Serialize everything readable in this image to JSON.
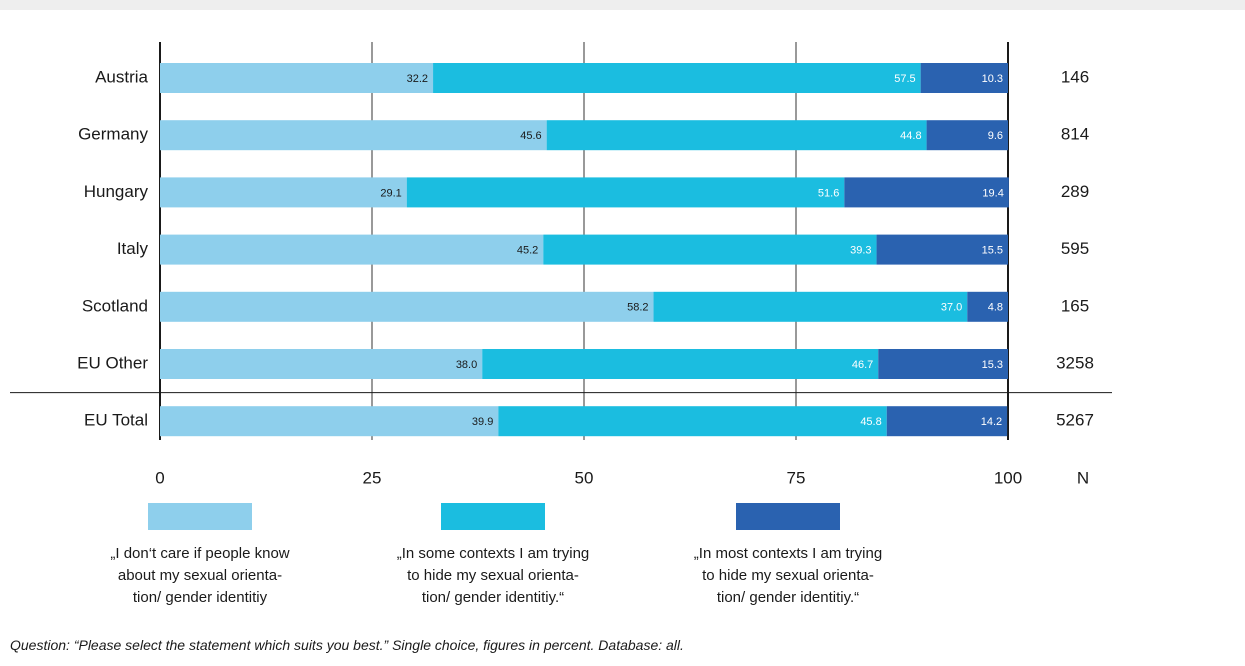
{
  "chart_data": {
    "type": "stacked-bar-horizontal",
    "categories": [
      "Austria",
      "Germany",
      "Hungary",
      "Italy",
      "Scotland",
      "EU Other",
      "EU Total"
    ],
    "series": [
      {
        "name": "„I don‘t care if people know\nabout my sexual orienta-\ntion/ gender identitiy",
        "color": "#8ecfec",
        "values": [
          32.2,
          45.6,
          29.1,
          45.2,
          58.2,
          38.0,
          39.9
        ],
        "value_labels": [
          "32.2",
          "45.6",
          "29.1",
          "45.2",
          "58.2",
          "38.0",
          "39.9"
        ]
      },
      {
        "name": "„In some contexts I am trying\nto hide my sexual orienta-\ntion/ gender identitiy.“",
        "color": "#1bbde0",
        "values": [
          57.5,
          44.8,
          51.6,
          39.3,
          37.0,
          46.7,
          45.8
        ],
        "value_labels": [
          "57.5",
          "44.8",
          "51.6",
          "39.3",
          "37.0",
          "46.7",
          "45.8"
        ]
      },
      {
        "name": "„In most contexts I am trying\n to hide my sexual orienta-\ntion/ gender identitiy.“",
        "color": "#2a62b0",
        "values": [
          10.3,
          9.6,
          19.4,
          15.5,
          4.8,
          15.3,
          14.2
        ],
        "value_labels": [
          "10.3",
          "9.6",
          "19.4",
          "15.5",
          "4.8",
          "15.3",
          "14.2"
        ]
      }
    ],
    "n_header": "N",
    "n_values": [
      146,
      814,
      289,
      595,
      165,
      3258,
      5267
    ],
    "xlim": [
      0,
      100
    ],
    "xticks": [
      0,
      25,
      50,
      75,
      100
    ],
    "grid": true,
    "note": "Question: “Please select the statement which suits you best.” Single choice, figures in percent. Database: all."
  }
}
